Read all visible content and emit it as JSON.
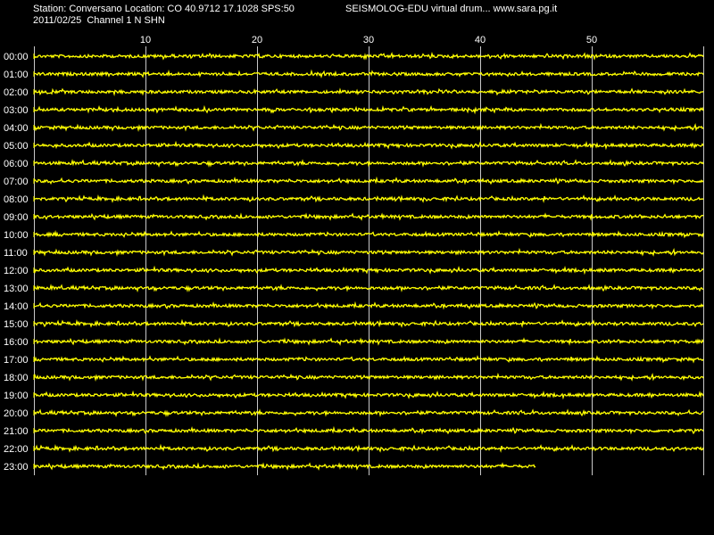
{
  "header": {
    "station_line": "Station: Conversano Location: CO 40.9712 17.1028 SPS:50",
    "date_line": "2011/02/25  Channel 1 N SHN",
    "app_line": "SEISMOLOG-EDU virtual drum... www.sara.pg.it"
  },
  "colors": {
    "background": "#000000",
    "trace": "#ffff00",
    "grid": "#c8c8c8",
    "text": "#ffffff"
  },
  "drum": {
    "minute_labels": [
      "10",
      "20",
      "30",
      "40",
      "50"
    ],
    "minute_values": [
      10,
      20,
      30,
      40,
      50
    ],
    "total_minutes": 60,
    "hours": [
      "00:00",
      "01:00",
      "02:00",
      "03:00",
      "04:00",
      "05:00",
      "06:00",
      "07:00",
      "08:00",
      "09:00",
      "10:00",
      "11:00",
      "12:00",
      "13:00",
      "14:00",
      "15:00",
      "16:00",
      "17:00",
      "18:00",
      "19:00",
      "20:00",
      "21:00",
      "22:00",
      "23:00"
    ],
    "last_trace_end_minute": 45
  }
}
